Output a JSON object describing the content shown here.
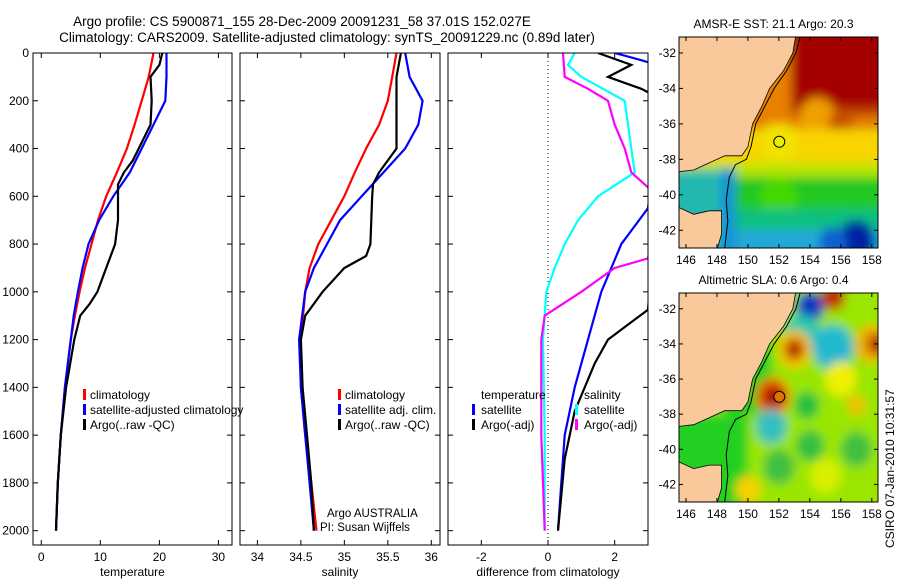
{
  "title": {
    "line1": "Argo profile: CS 5900871_155 28-Dec-2009 20091231_58 37.01S 152.027E",
    "line2": "Climatology: CARS2009. Satellite-adjusted climatology: synTS_20091229.nc (0.89d later)"
  },
  "colors": {
    "climatology": "#ff0000",
    "satellite": "#0000ff",
    "argo": "#000000",
    "sal_sat": "#00ffff",
    "sal_argo": "#ff00ff",
    "land": "#f9c99c"
  },
  "footer": {
    "stamp": "CSIRO 07-Jan-2010 10:31:57",
    "agency": "Argo AUSTRALIA",
    "pi": "PI: Susan Wijffels"
  },
  "chart_data": [
    {
      "type": "line",
      "id": "temperature",
      "xlabel": "temperature",
      "ylabel": "",
      "xlim": [
        -1.4,
        32.3
      ],
      "ylim": [
        0,
        2060
      ],
      "y_reversed": true,
      "xticks": [
        0,
        10,
        20,
        30
      ],
      "yticks": [
        0,
        200,
        400,
        600,
        800,
        1000,
        1200,
        1400,
        1600,
        1800,
        2000
      ],
      "legend": [
        "climatology",
        "satellite-adjusted climatology",
        "Argo(..raw -QC)"
      ],
      "series": [
        {
          "name": "climatology",
          "color": "#ff0000",
          "depth": [
            0,
            100,
            200,
            300,
            400,
            500,
            600,
            700,
            800,
            900,
            1000,
            1100,
            1200,
            1400,
            1600,
            1800,
            2000
          ],
          "values": [
            19,
            18.2,
            17,
            15.8,
            14.5,
            12.8,
            11,
            9.6,
            8.5,
            7.4,
            6.5,
            5.7,
            5,
            4,
            3.3,
            2.8,
            2.5
          ]
        },
        {
          "name": "satellite-adjusted climatology",
          "color": "#0000ff",
          "depth": [
            0,
            100,
            200,
            250,
            300,
            400,
            500,
            600,
            700,
            800,
            900,
            1000,
            1100,
            1200,
            1400,
            1600,
            1800,
            2000
          ],
          "values": [
            21.2,
            21.2,
            21,
            20,
            19,
            17,
            15,
            12.2,
            9.8,
            8,
            7,
            6.2,
            5.5,
            5,
            4,
            3.3,
            2.8,
            2.5
          ]
        },
        {
          "name": "Argo(..raw -QC)",
          "color": "#000000",
          "depth": [
            0,
            50,
            100,
            200,
            300,
            350,
            450,
            500,
            550,
            600,
            700,
            800,
            900,
            1000,
            1050,
            1100,
            1200,
            1400,
            1600,
            1800,
            2000
          ],
          "values": [
            20.5,
            20,
            18.5,
            18.7,
            18.5,
            17.5,
            15.5,
            14,
            13,
            13,
            13,
            12.5,
            11,
            9.5,
            8.2,
            6.6,
            5.6,
            4.2,
            3.3,
            2.8,
            2.5
          ]
        }
      ]
    },
    {
      "type": "line",
      "id": "salinity",
      "xlabel": "salinity",
      "xlim": [
        33.8,
        36.1
      ],
      "ylim": [
        0,
        2060
      ],
      "y_reversed": true,
      "xticks": [
        34,
        34.5,
        35,
        35.5,
        36
      ],
      "yticks": [
        0,
        200,
        400,
        600,
        800,
        1000,
        1200,
        1400,
        1600,
        1800,
        2000
      ],
      "legend": [
        "climatology",
        "satellite adj. clim.",
        "Argo(..raw -QC)"
      ],
      "series": [
        {
          "name": "climatology",
          "color": "#ff0000",
          "depth": [
            0,
            100,
            200,
            300,
            400,
            500,
            600,
            700,
            800,
            900,
            1000,
            1200,
            1400,
            1600,
            1800,
            2000
          ],
          "values": [
            35.6,
            35.55,
            35.5,
            35.4,
            35.25,
            35.12,
            35.0,
            34.85,
            34.7,
            34.6,
            34.55,
            34.5,
            34.5,
            34.55,
            34.62,
            34.68
          ]
        },
        {
          "name": "satellite adj. clim.",
          "color": "#0000ff",
          "depth": [
            0,
            100,
            200,
            300,
            400,
            500,
            600,
            700,
            800,
            900,
            1000,
            1200,
            1400,
            1600,
            1800,
            2000
          ],
          "values": [
            35.7,
            35.75,
            35.9,
            35.85,
            35.7,
            35.45,
            35.2,
            34.95,
            34.8,
            34.65,
            34.55,
            34.48,
            34.5,
            34.55,
            34.6,
            34.65
          ]
        },
        {
          "name": "Argo(..raw -QC)",
          "color": "#000000",
          "depth": [
            0,
            100,
            200,
            400,
            450,
            500,
            550,
            600,
            700,
            800,
            850,
            900,
            1000,
            1100,
            1200,
            1400,
            1600,
            1800,
            2000
          ],
          "values": [
            35.65,
            35.6,
            35.6,
            35.6,
            35.5,
            35.4,
            35.33,
            35.32,
            35.31,
            35.3,
            35.25,
            35.0,
            34.75,
            34.55,
            34.5,
            34.52,
            34.57,
            34.62,
            34.65
          ]
        }
      ]
    },
    {
      "type": "line",
      "id": "difference",
      "xlabel": "difference from climatology",
      "xlim": [
        -3,
        3
      ],
      "ylim": [
        0,
        2060
      ],
      "y_reversed": true,
      "xticks": [
        -2,
        0,
        2
      ],
      "yticks": [
        0,
        200,
        400,
        600,
        800,
        1000,
        1200,
        1400,
        1600,
        1800,
        2000
      ],
      "legend_groups": [
        {
          "title": "temperature",
          "items": [
            {
              "label": "satellite",
              "color": "#0000ff"
            },
            {
              "label": "Argo(-adj)",
              "color": "#000000"
            }
          ]
        },
        {
          "title": "salinity",
          "items": [
            {
              "label": "satellite",
              "color": "#00ffff"
            },
            {
              "label": "Argo(-adj)",
              "color": "#ff00ff"
            }
          ]
        }
      ],
      "series": [
        {
          "name": "temperature satellite",
          "color": "#0000ff",
          "depth": [
            0,
            30,
            60,
            650,
            800,
            1000,
            1200,
            1400,
            1600,
            1800,
            2000
          ],
          "values": [
            2.0,
            2.8,
            3.5,
            3.0,
            2.2,
            1.6,
            1.2,
            0.8,
            0.5,
            0.4,
            0.3
          ]
        },
        {
          "name": "temperature Argo(-adj)",
          "color": "#000000",
          "depth": [
            0,
            50,
            100,
            150,
            200,
            1075,
            1200,
            1300,
            1500,
            1700,
            2000
          ],
          "values": [
            1.5,
            2.5,
            1.8,
            2.8,
            3.5,
            3.0,
            1.8,
            1.4,
            0.8,
            0.5,
            0.3
          ]
        },
        {
          "name": "salinity satellite",
          "color": "#00ffff",
          "depth": [
            0,
            50,
            100,
            200,
            400,
            500,
            600,
            700,
            800,
            900,
            1000,
            1200,
            1600,
            2000
          ],
          "values": [
            0.8,
            0.6,
            1.0,
            2.3,
            2.5,
            2.6,
            1.5,
            0.9,
            0.5,
            0.2,
            -0.05,
            -0.15,
            -0.1,
            -0.1
          ]
        },
        {
          "name": "salinity Argo(-adj)",
          "color": "#ff00ff",
          "depth": [
            0,
            100,
            150,
            200,
            300,
            400,
            500,
            600,
            860,
            900,
            1000,
            1100,
            1200,
            1600,
            2000
          ],
          "values": [
            0.45,
            0.5,
            1.2,
            1.8,
            2.0,
            2.3,
            2.5,
            3.3,
            3.0,
            2.0,
            1.0,
            -0.1,
            -0.2,
            -0.2,
            -0.1
          ]
        }
      ]
    },
    {
      "type": "heatmap",
      "id": "sst_map",
      "title": "AMSR-E SST: 21.1 Argo: 20.3",
      "xlim": [
        145.55,
        158.4
      ],
      "ylim": [
        -43.0,
        -31.1
      ],
      "xticks": [
        146,
        148,
        150,
        152,
        154,
        156,
        158
      ],
      "yticks": [
        -32,
        -34,
        -36,
        -38,
        -40,
        -42
      ],
      "marker": {
        "lon": 152.027,
        "lat": -37.01
      }
    },
    {
      "type": "heatmap",
      "id": "sla_map",
      "title": "Altimetric SLA: 0.6 Argo: 0.4",
      "xlim": [
        145.55,
        158.4
      ],
      "ylim": [
        -43.0,
        -31.1
      ],
      "xticks": [
        146,
        148,
        150,
        152,
        154,
        156,
        158
      ],
      "yticks": [
        -32,
        -34,
        -36,
        -38,
        -40,
        -42
      ],
      "marker": {
        "lon": 152.027,
        "lat": -37.01
      }
    }
  ]
}
